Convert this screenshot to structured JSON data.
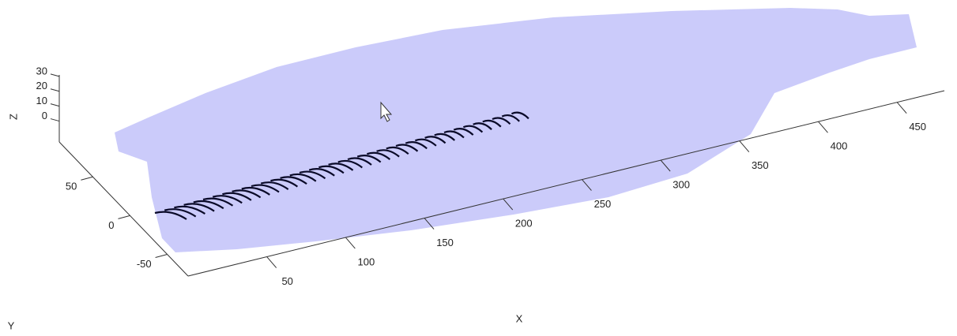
{
  "chart_data": {
    "type": "surface3d",
    "xlabel": "X",
    "ylabel": "Y",
    "zlabel": "Z",
    "xlim": [
      0,
      480
    ],
    "ylim": [
      -78,
      95
    ],
    "zlim": [
      -14,
      31
    ],
    "xticks": [
      50,
      100,
      150,
      200,
      250,
      300,
      350,
      400,
      450
    ],
    "yticks": [
      -50,
      0,
      50
    ],
    "zticks": [
      0,
      10,
      20,
      30
    ],
    "surface_color": "#c8c8fa"
  }
}
